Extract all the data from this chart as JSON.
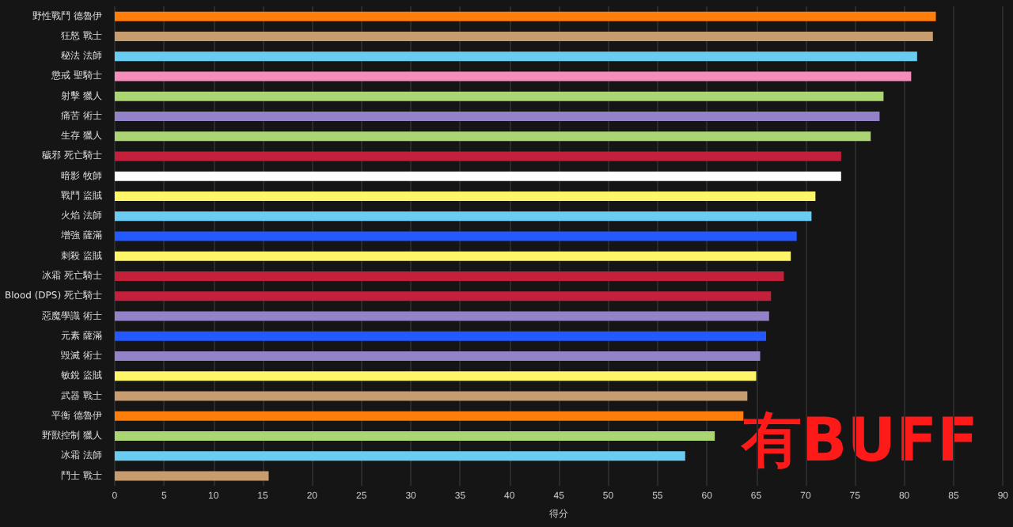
{
  "chart_data": {
    "type": "bar",
    "orientation": "horizontal",
    "xlabel": "得分",
    "categories": [
      "野性戰鬥 德魯伊",
      "狂怒 戰士",
      "秘法 法師",
      "懲戒 聖騎士",
      "射擊 獵人",
      "痛苦 術士",
      "生存 獵人",
      "穢邪 死亡騎士",
      "暗影 牧師",
      "戰鬥 盜賊",
      "火焰 法師",
      "增強 薩滿",
      "刺殺 盜賊",
      "冰霜 死亡騎士",
      "Blood (DPS) 死亡騎士",
      "惡魔學識 術士",
      "元素 薩滿",
      "毀滅 術士",
      "敏銳 盜賊",
      "武器 戰士",
      "平衡 德魯伊",
      "野獸控制 獵人",
      "冰霜 法師",
      "鬥士 戰士"
    ],
    "values": [
      83.2,
      82.9,
      81.3,
      80.7,
      77.9,
      77.5,
      76.6,
      73.6,
      73.6,
      71.0,
      70.6,
      69.1,
      68.5,
      67.8,
      66.5,
      66.3,
      66.0,
      65.4,
      65.0,
      64.1,
      63.7,
      60.8,
      57.8,
      15.6
    ],
    "colors": [
      "#ff7d0a",
      "#c79c6e",
      "#69ccf0",
      "#f58cba",
      "#abd473",
      "#9482c9",
      "#abd473",
      "#c41f3b",
      "#ffffff",
      "#fff569",
      "#69ccf0",
      "#2459ff",
      "#fff569",
      "#c41f3b",
      "#c41f3b",
      "#9482c9",
      "#2459ff",
      "#9482c9",
      "#fff569",
      "#c79c6e",
      "#ff7d0a",
      "#abd473",
      "#69ccf0",
      "#c79c6e"
    ],
    "xlim": [
      0,
      90
    ],
    "xticks": [
      0,
      5,
      10,
      15,
      20,
      25,
      30,
      35,
      40,
      45,
      50,
      55,
      60,
      65,
      70,
      75,
      80,
      85,
      90
    ],
    "grid": "x",
    "annotations": [
      "有BUFF"
    ]
  }
}
